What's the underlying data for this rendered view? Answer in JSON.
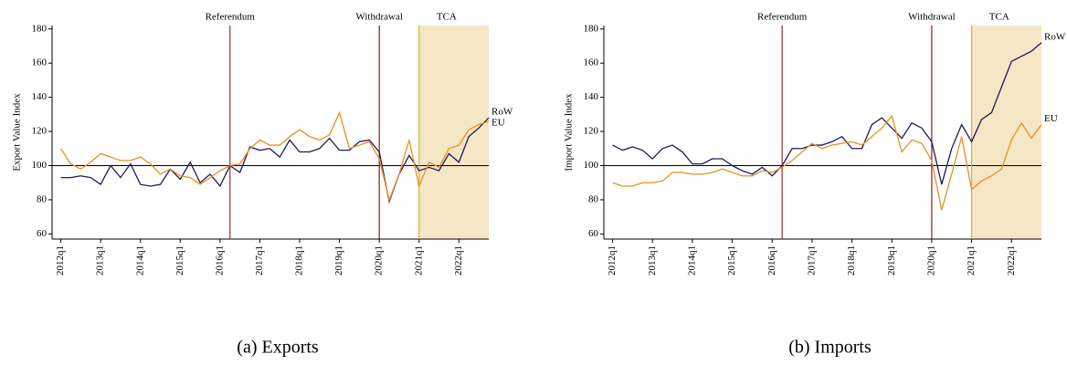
{
  "chart_data": [
    {
      "type": "line",
      "caption": "(a) Exports",
      "ylabel": "Export Value Index",
      "x": [
        2012.0,
        2012.25,
        2012.5,
        2012.75,
        2013.0,
        2013.25,
        2013.5,
        2013.75,
        2014.0,
        2014.25,
        2014.5,
        2014.75,
        2015.0,
        2015.25,
        2015.5,
        2015.75,
        2016.0,
        2016.25,
        2016.5,
        2016.75,
        2017.0,
        2017.25,
        2017.5,
        2017.75,
        2018.0,
        2018.25,
        2018.5,
        2018.75,
        2019.0,
        2019.25,
        2019.5,
        2019.75,
        2020.0,
        2020.25,
        2020.5,
        2020.75,
        2021.0,
        2021.25,
        2021.5,
        2021.75,
        2022.0,
        2022.25,
        2022.5,
        2022.75
      ],
      "series": [
        {
          "name": "RoW",
          "color": "#1c1a5a",
          "values": [
            93,
            93,
            94,
            93,
            89,
            100,
            93,
            101,
            89,
            88,
            89,
            98,
            92,
            102,
            90,
            95,
            88,
            100,
            96,
            111,
            109,
            110,
            105,
            115,
            108,
            108,
            110,
            116,
            109,
            109,
            114,
            115,
            108,
            79,
            95,
            106,
            97,
            99,
            97,
            107,
            102,
            117,
            122,
            128
          ]
        },
        {
          "name": "EU",
          "color": "#e8901c",
          "values": [
            110,
            101,
            98,
            102,
            107,
            105,
            103,
            103,
            105,
            101,
            95,
            98,
            94,
            93,
            89,
            93,
            97,
            100,
            101,
            110,
            115,
            112,
            112,
            117,
            121,
            117,
            115,
            118,
            131,
            110,
            112,
            114,
            104,
            80,
            95,
            115,
            88,
            102,
            99,
            110,
            112,
            121,
            124,
            126
          ]
        }
      ],
      "xlim": [
        2011.78,
        2022.75
      ],
      "ylim": [
        57,
        182
      ],
      "xticks": [
        {
          "value": 2012,
          "label": "2012q1"
        },
        {
          "value": 2013,
          "label": "2013q1"
        },
        {
          "value": 2014,
          "label": "2014q1"
        },
        {
          "value": 2015,
          "label": "2015q1"
        },
        {
          "value": 2016,
          "label": "2016q1"
        },
        {
          "value": 2017,
          "label": "2017q1"
        },
        {
          "value": 2018,
          "label": "2018q1"
        },
        {
          "value": 2019,
          "label": "2019q1"
        },
        {
          "value": 2020,
          "label": "2020q1"
        },
        {
          "value": 2021,
          "label": "2021q1"
        },
        {
          "value": 2022,
          "label": "2022q1"
        }
      ],
      "yticks": [
        60,
        80,
        100,
        120,
        140,
        160,
        180
      ],
      "reference_line": 100,
      "annotations": [
        {
          "text": "Referendum",
          "x": 2016.25,
          "color": "#a52a2a"
        },
        {
          "text": "Withdrawal",
          "x": 2020.0,
          "color": "#8b1a1a"
        },
        {
          "text": "TCA",
          "x": 2021.0,
          "color": "#e6a935",
          "shade": "#f5e7c6"
        }
      ]
    },
    {
      "type": "line",
      "caption": "(b) Imports",
      "ylabel": "Import Value Index",
      "x": [
        2012.0,
        2012.25,
        2012.5,
        2012.75,
        2013.0,
        2013.25,
        2013.5,
        2013.75,
        2014.0,
        2014.25,
        2014.5,
        2014.75,
        2015.0,
        2015.25,
        2015.5,
        2015.75,
        2016.0,
        2016.25,
        2016.5,
        2016.75,
        2017.0,
        2017.25,
        2017.5,
        2017.75,
        2018.0,
        2018.25,
        2018.5,
        2018.75,
        2019.0,
        2019.25,
        2019.5,
        2019.75,
        2020.0,
        2020.25,
        2020.5,
        2020.75,
        2021.0,
        2021.25,
        2021.5,
        2021.75,
        2022.0,
        2022.25,
        2022.5,
        2022.75
      ],
      "series": [
        {
          "name": "RoW",
          "color": "#1c1a5a",
          "values": [
            112,
            109,
            111,
            109,
            104,
            110,
            112,
            108,
            101,
            101,
            104,
            104,
            100,
            97,
            95,
            99,
            94,
            100,
            110,
            110,
            112,
            112,
            114,
            117,
            110,
            110,
            124,
            128,
            122,
            116,
            125,
            122,
            114,
            89,
            110,
            124,
            114,
            127,
            131,
            146,
            161,
            164,
            167,
            172
          ]
        },
        {
          "name": "EU",
          "color": "#e8901c",
          "values": [
            90,
            88,
            88,
            90,
            90,
            91,
            96,
            96,
            95,
            95,
            96,
            98,
            96,
            94,
            94,
            97,
            96,
            99,
            103,
            108,
            113,
            110,
            112,
            113,
            114,
            112,
            117,
            122,
            129,
            108,
            115,
            113,
            103,
            74,
            95,
            117,
            86,
            91,
            94,
            98,
            115,
            125,
            116,
            124
          ]
        }
      ],
      "xlim": [
        2011.78,
        2022.75
      ],
      "ylim": [
        57,
        182
      ],
      "xticks": [
        {
          "value": 2012,
          "label": "2012q1"
        },
        {
          "value": 2013,
          "label": "2013q1"
        },
        {
          "value": 2014,
          "label": "2014q1"
        },
        {
          "value": 2015,
          "label": "2015q1"
        },
        {
          "value": 2016,
          "label": "2016q1"
        },
        {
          "value": 2017,
          "label": "2017q1"
        },
        {
          "value": 2018,
          "label": "2018q1"
        },
        {
          "value": 2019,
          "label": "2019q1"
        },
        {
          "value": 2020,
          "label": "2020q1"
        },
        {
          "value": 2021,
          "label": "2021q1"
        },
        {
          "value": 2022,
          "label": "2022q1"
        }
      ],
      "yticks": [
        60,
        80,
        100,
        120,
        140,
        160,
        180
      ],
      "reference_line": 100,
      "annotations": [
        {
          "text": "Referendum",
          "x": 2016.25,
          "color": "#a52a2a"
        },
        {
          "text": "Withdrawal",
          "x": 2020.0,
          "color": "#8b1a1a"
        },
        {
          "text": "TCA",
          "x": 2021.0,
          "color": "#e6a935",
          "shade": "#f5e7c6"
        }
      ]
    }
  ]
}
